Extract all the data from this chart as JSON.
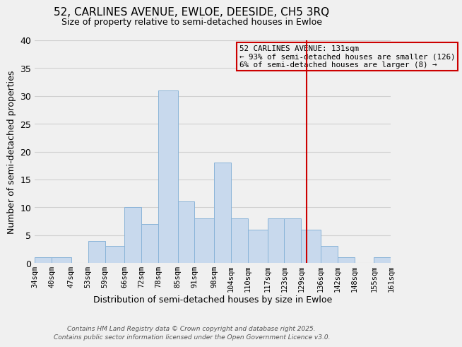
{
  "title": "52, CARLINES AVENUE, EWLOE, DEESIDE, CH5 3RQ",
  "subtitle": "Size of property relative to semi-detached houses in Ewloe",
  "xlabel": "Distribution of semi-detached houses by size in Ewloe",
  "ylabel": "Number of semi-detached properties",
  "bin_edges": [
    34,
    40,
    47,
    53,
    59,
    66,
    72,
    78,
    85,
    91,
    98,
    104,
    110,
    117,
    123,
    129,
    136,
    142,
    148,
    155,
    161
  ],
  "bin_counts": [
    1,
    1,
    0,
    4,
    3,
    10,
    7,
    31,
    11,
    8,
    18,
    8,
    6,
    8,
    8,
    6,
    3,
    1,
    0,
    1
  ],
  "bar_facecolor": "#c8d9ed",
  "bar_edgecolor": "#8ab4d8",
  "bar_linewidth": 0.7,
  "grid_color": "#d0d0d0",
  "background_color": "#f0f0f0",
  "vline_x": 131,
  "vline_color": "#cc0000",
  "ylim": [
    0,
    40
  ],
  "yticks": [
    0,
    5,
    10,
    15,
    20,
    25,
    30,
    35,
    40
  ],
  "annotation_title": "52 CARLINES AVENUE: 131sqm",
  "annotation_line1": "← 93% of semi-detached houses are smaller (126)",
  "annotation_line2": "6% of semi-detached houses are larger (8) →",
  "annotation_box_edgecolor": "#cc0000",
  "footer_line1": "Contains HM Land Registry data © Crown copyright and database right 2025.",
  "footer_line2": "Contains public sector information licensed under the Open Government Licence v3.0.",
  "tick_labels": [
    "34sqm",
    "40sqm",
    "47sqm",
    "53sqm",
    "59sqm",
    "66sqm",
    "72sqm",
    "78sqm",
    "85sqm",
    "91sqm",
    "98sqm",
    "104sqm",
    "110sqm",
    "117sqm",
    "123sqm",
    "129sqm",
    "136sqm",
    "142sqm",
    "148sqm",
    "155sqm",
    "161sqm"
  ]
}
